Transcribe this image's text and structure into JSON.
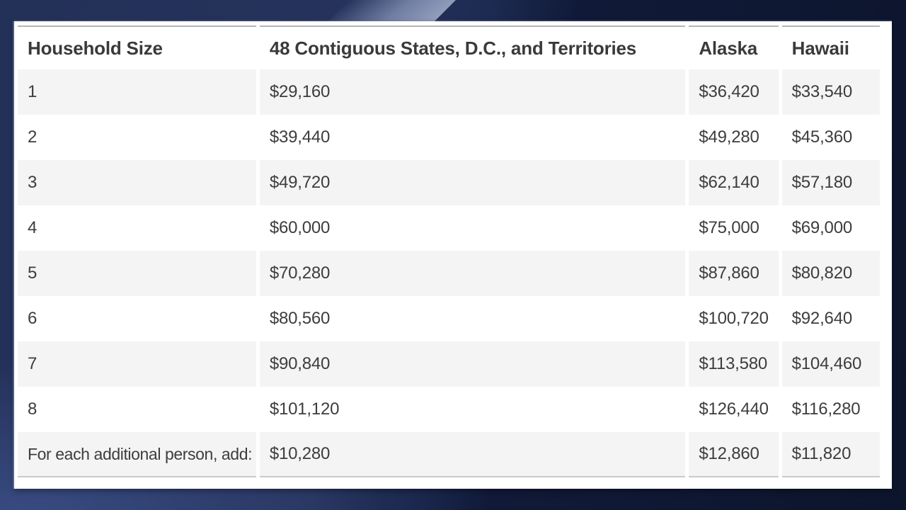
{
  "chart_data": {
    "type": "table",
    "columns": [
      "Household Size",
      "48 Contiguous States, D.C., and Territories",
      "Alaska",
      "Hawaii"
    ],
    "rows": [
      [
        "1",
        "$29,160",
        "$36,420",
        "$33,540"
      ],
      [
        "2",
        "$39,440",
        "$49,280",
        "$45,360"
      ],
      [
        "3",
        "$49,720",
        "$62,140",
        "$57,180"
      ],
      [
        "4",
        "$60,000",
        "$75,000",
        "$69,000"
      ],
      [
        "5",
        "$70,280",
        "$87,860",
        "$80,820"
      ],
      [
        "6",
        "$80,560",
        "$100,720",
        "$92,640"
      ],
      [
        "7",
        "$90,840",
        "$113,580",
        "$104,460"
      ],
      [
        "8",
        "$101,120",
        "$126,440",
        "$116,280"
      ],
      [
        "For each additional person, add:",
        "$10,280",
        "$12,860",
        "$11,820"
      ]
    ],
    "layout_hints": {
      "striped": true,
      "first_body_row_shaded": true,
      "header_rule_top": true,
      "bottom_rule": true,
      "column_gaps": true
    }
  },
  "colors": {
    "panel_bg": "#ffffff",
    "stripe_bg": "#f4f4f4",
    "rule_color": "#b5b5b5",
    "header_text": "#3a3a3a",
    "cell_text": "#3d3d3d",
    "backdrop_navy": "#233058",
    "backdrop_dark": "#0d152c",
    "backdrop_highlight": "#9ba5c3"
  }
}
